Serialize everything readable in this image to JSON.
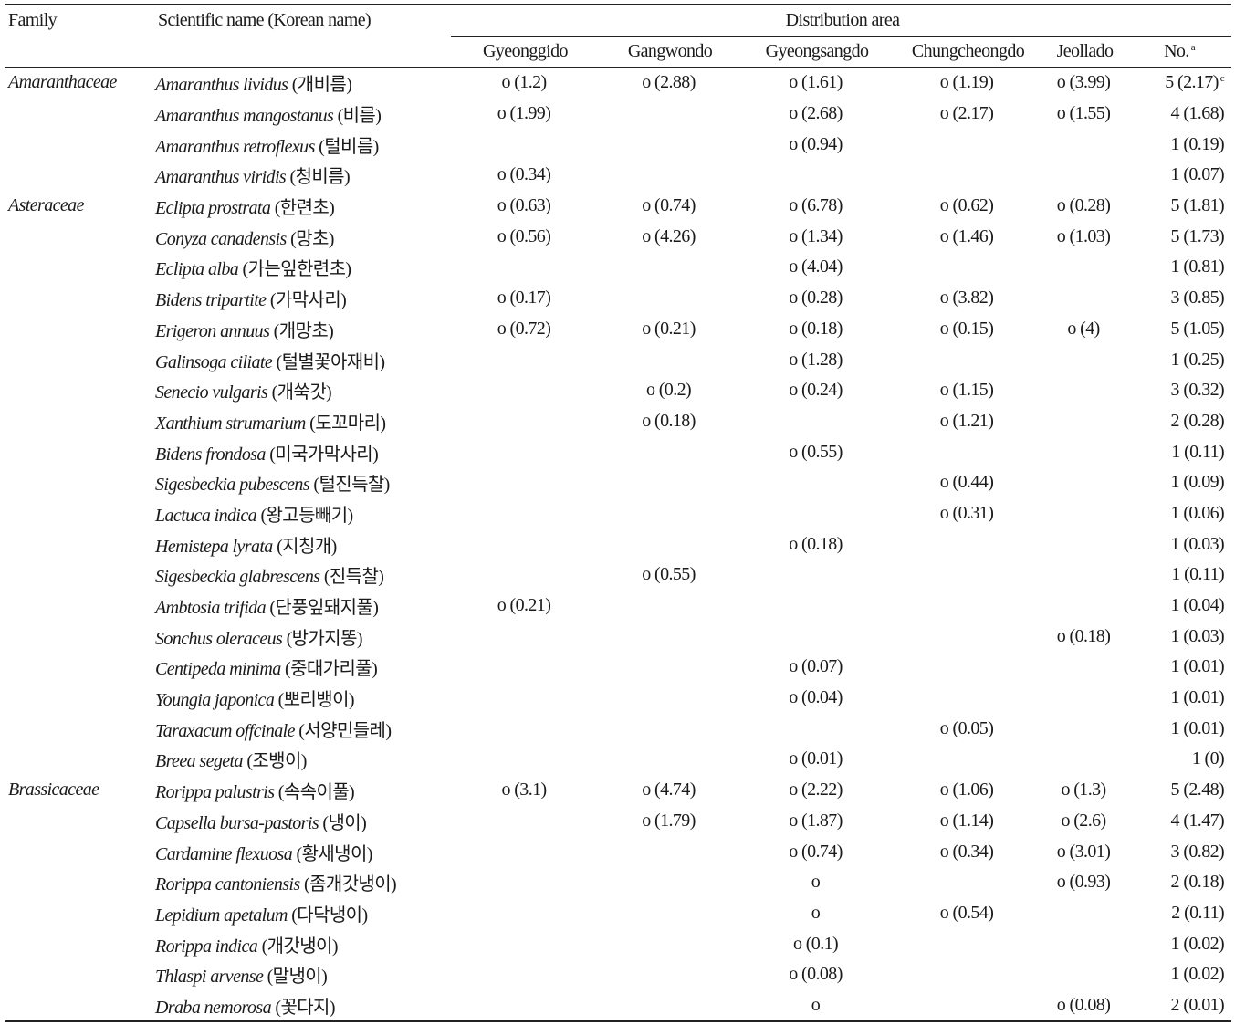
{
  "header": {
    "family": "Family",
    "scientific": "Scientific name (Korean name)",
    "distribution": "Distribution area",
    "regions": [
      "Gyeonggido",
      "Gangwondo",
      "Gyeongsangdo",
      "Chungcheongdo",
      "Jeollado"
    ],
    "no": "No.",
    "no_sup": "a"
  },
  "rows": [
    {
      "family": "Amaranthaceae",
      "sci": "Amaranthus lividus",
      "kor": "(개비름)",
      "regions": [
        "o (1.2)",
        "o (2.88)",
        "o (1.61)",
        "o (1.19)",
        "o (3.99)"
      ],
      "no": "5 (2.17)",
      "no_sup": "c"
    },
    {
      "family": "",
      "sci": "Amaranthus mangostanus",
      "kor": "(비름)",
      "regions": [
        "o (1.99)",
        "",
        "o (2.68)",
        "o (2.17)",
        "o (1.55)"
      ],
      "no": "4 (1.68)"
    },
    {
      "family": "",
      "sci": "Amaranthus retroflexus",
      "kor": "(털비름)",
      "regions": [
        "",
        "",
        "o (0.94)",
        "",
        ""
      ],
      "no": "1 (0.19)"
    },
    {
      "family": "",
      "sci": "Amaranthus viridis",
      "kor": "(청비름)",
      "regions": [
        "o (0.34)",
        "",
        "",
        "",
        ""
      ],
      "no": "1 (0.07)"
    },
    {
      "family": "Asteraceae",
      "sci": "Eclipta prostrata",
      "kor": "(한련초)",
      "regions": [
        "o (0.63)",
        "o (0.74)",
        "o (6.78)",
        "o (0.62)",
        "o (0.28)"
      ],
      "no": "5 (1.81)"
    },
    {
      "family": "",
      "sci": "Conyza canadensis",
      "kor": "(망초)",
      "regions": [
        "o (0.56)",
        "o (4.26)",
        "o (1.34)",
        "o (1.46)",
        "o (1.03)"
      ],
      "no": "5 (1.73)"
    },
    {
      "family": "",
      "sci": "Eclipta alba",
      "kor": "(가는잎한련초)",
      "regions": [
        "",
        "",
        "o (4.04)",
        "",
        ""
      ],
      "no": "1 (0.81)"
    },
    {
      "family": "",
      "sci": "Bidens tripartite",
      "kor": "(가막사리)",
      "regions": [
        "o (0.17)",
        "",
        "o (0.28)",
        "o (3.82)",
        ""
      ],
      "no": "3 (0.85)"
    },
    {
      "family": "",
      "sci": "Erigeron annuus",
      "kor": "(개망초)",
      "regions": [
        "o (0.72)",
        "o (0.21)",
        "o (0.18)",
        "o (0.15)",
        "o (4)"
      ],
      "no": "5 (1.05)"
    },
    {
      "family": "",
      "sci": "Galinsoga ciliate",
      "kor": "(털별꽃아재비)",
      "regions": [
        "",
        "",
        "o (1.28)",
        "",
        ""
      ],
      "no": "1 (0.25)"
    },
    {
      "family": "",
      "sci": "Senecio vulgaris",
      "kor": "(개쑥갓)",
      "regions": [
        "",
        "o (0.2)",
        "o (0.24)",
        "o (1.15)",
        ""
      ],
      "no": "3 (0.32)"
    },
    {
      "family": "",
      "sci": "Xanthium strumarium",
      "kor": "(도꼬마리)",
      "regions": [
        "",
        "o (0.18)",
        "",
        "o (1.21)",
        ""
      ],
      "no": "2 (0.28)"
    },
    {
      "family": "",
      "sci": "Bidens frondosa",
      "kor": "(미국가막사리)",
      "regions": [
        "",
        "",
        "o (0.55)",
        "",
        ""
      ],
      "no": "1 (0.11)"
    },
    {
      "family": "",
      "sci": "Sigesbeckia pubescens",
      "kor": "(털진득찰)",
      "regions": [
        "",
        "",
        "",
        "o (0.44)",
        ""
      ],
      "no": "1 (0.09)"
    },
    {
      "family": "",
      "sci": "Lactuca indica",
      "kor": "(왕고등빼기)",
      "regions": [
        "",
        "",
        "",
        "o (0.31)",
        ""
      ],
      "no": "1 (0.06)"
    },
    {
      "family": "",
      "sci": "Hemistepa lyrata",
      "kor": "(지칭개)",
      "regions": [
        "",
        "",
        "o (0.18)",
        "",
        ""
      ],
      "no": "1 (0.03)"
    },
    {
      "family": "",
      "sci": "Sigesbeckia glabrescens",
      "kor": "(진득찰)",
      "regions": [
        "",
        "o (0.55)",
        "",
        "",
        ""
      ],
      "no": "1 (0.11)"
    },
    {
      "family": "",
      "sci": "Ambtosia trifida",
      "kor": "(단풍잎돼지풀)",
      "regions": [
        "o (0.21)",
        "",
        "",
        "",
        ""
      ],
      "no": "1 (0.04)"
    },
    {
      "family": "",
      "sci": "Sonchus oleraceus",
      "kor": "(방가지똥)",
      "regions": [
        "",
        "",
        "",
        "",
        "o (0.18)"
      ],
      "no": "1 (0.03)"
    },
    {
      "family": "",
      "sci": "Centipeda minima",
      "kor": "(중대가리풀)",
      "regions": [
        "",
        "",
        "o (0.07)",
        "",
        ""
      ],
      "no": "1 (0.01)"
    },
    {
      "family": "",
      "sci": "Youngia japonica",
      "kor": "(뽀리뱅이)",
      "regions": [
        "",
        "",
        "o (0.04)",
        "",
        ""
      ],
      "no": "1 (0.01)"
    },
    {
      "family": "",
      "sci": "Taraxacum offcinale",
      "kor": "(서양민들레)",
      "regions": [
        "",
        "",
        "",
        "o (0.05)",
        ""
      ],
      "no": "1 (0.01)"
    },
    {
      "family": "",
      "sci": "Breea segeta",
      "kor": "(조뱅이)",
      "regions": [
        "",
        "",
        "o (0.01)",
        "",
        ""
      ],
      "no": "1 (0)"
    },
    {
      "family": "Brassicaceae",
      "sci": "Rorippa palustris",
      "kor": "(속속이풀)",
      "regions": [
        "o (3.1)",
        "o (4.74)",
        "o (2.22)",
        "o (1.06)",
        "o (1.3)"
      ],
      "no": "5 (2.48)"
    },
    {
      "family": "",
      "sci": "Capsella bursa-pastoris",
      "kor": "(냉이)",
      "regions": [
        "",
        "o (1.79)",
        "o (1.87)",
        "o (1.14)",
        "o (2.6)"
      ],
      "no": "4 (1.47)"
    },
    {
      "family": "",
      "sci": "Cardamine flexuosa",
      "kor": "(황새냉이)",
      "regions": [
        "",
        "",
        "o (0.74)",
        "o (0.34)",
        "o (3.01)"
      ],
      "no": "3 (0.82)"
    },
    {
      "family": "",
      "sci": "Rorippa cantoniensis",
      "kor": "(좀개갓냉이)",
      "regions": [
        "",
        "",
        "o",
        "",
        "o (0.93)"
      ],
      "no": "2 (0.18)"
    },
    {
      "family": "",
      "sci": "Lepidium apetalum",
      "kor": "(다닥냉이)",
      "regions": [
        "",
        "",
        "o",
        "o (0.54)",
        ""
      ],
      "no": "2 (0.11)"
    },
    {
      "family": "",
      "sci": "Rorippa indica",
      "kor": "(개갓냉이)",
      "regions": [
        "",
        "",
        "o (0.1)",
        "",
        ""
      ],
      "no": "1 (0.02)"
    },
    {
      "family": "",
      "sci": "Thlaspi arvense",
      "kor": "(말냉이)",
      "regions": [
        "",
        "",
        "o (0.08)",
        "",
        ""
      ],
      "no": "1 (0.02)"
    },
    {
      "family": "",
      "sci": "Draba nemorosa",
      "kor": "(꽃다지)",
      "regions": [
        "",
        "",
        "o",
        "",
        "o (0.08)"
      ],
      "no": "2 (0.01)"
    }
  ]
}
